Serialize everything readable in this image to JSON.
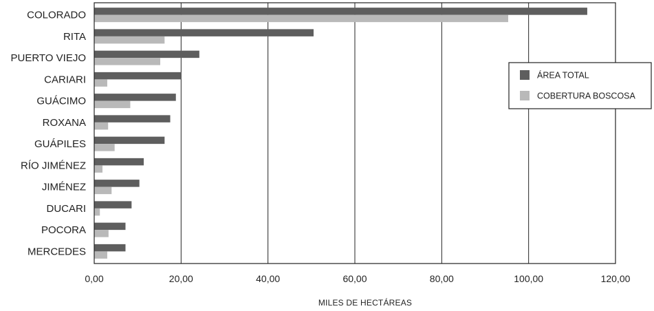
{
  "chart_data": {
    "type": "bar",
    "orientation": "horizontal",
    "title": "",
    "xlabel": "MILES DE HECTÁREAS",
    "ylabel": "",
    "xlim": [
      0,
      120
    ],
    "xticks": [
      0,
      20,
      40,
      60,
      80,
      100,
      120
    ],
    "xtick_labels": [
      "0,00",
      "20,00",
      "40,00",
      "60,00",
      "80,00",
      "100,00",
      "120,00"
    ],
    "grid": "vertical",
    "legend_position": "right",
    "categories": [
      "COLORADO",
      "RITA",
      "PUERTO VIEJO",
      "CARIARI",
      "GUÁCIMO",
      "ROXANA",
      "GUÁPILES",
      "RÍO JIMÉNEZ",
      "JIMÉNEZ",
      "DUCARI",
      "POCORA",
      "MERCEDES"
    ],
    "series": [
      {
        "name": "ÁREA TOTAL",
        "color": "#5e5e5e",
        "values": [
          113.5,
          50.5,
          24.2,
          20.0,
          18.8,
          17.5,
          16.2,
          11.4,
          10.4,
          8.6,
          7.2,
          7.2
        ]
      },
      {
        "name": "COBERTURA BOSCOSA",
        "color": "#b9b9b9",
        "values": [
          95.3,
          16.2,
          15.2,
          3.0,
          8.3,
          3.2,
          4.7,
          1.9,
          4.0,
          1.3,
          3.3,
          3.0
        ]
      }
    ]
  }
}
